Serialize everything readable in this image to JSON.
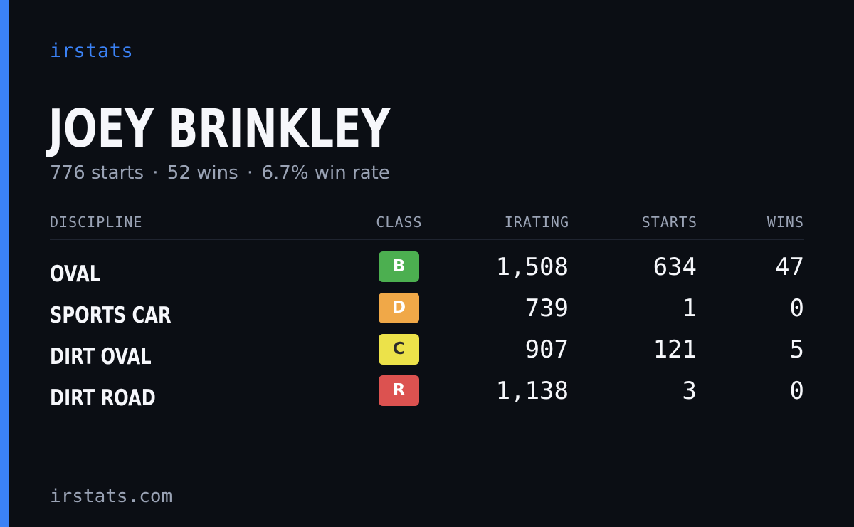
{
  "brand": "irstats",
  "driver": {
    "name": "JOEY BRINKLEY",
    "summary": {
      "starts": "776 starts",
      "wins": "52 wins",
      "win_rate": "6.7% win rate",
      "separator": "·"
    }
  },
  "table": {
    "headers": {
      "discipline": "DISCIPLINE",
      "class": "CLASS",
      "irating": "IRATING",
      "starts": "STARTS",
      "wins": "WINS"
    },
    "rows": [
      {
        "discipline": "OVAL",
        "class": "B",
        "class_color": "#4caf50",
        "class_text_color": "#ffffff",
        "irating": "1,508",
        "starts": "634",
        "wins": "47"
      },
      {
        "discipline": "SPORTS CAR",
        "class": "D",
        "class_color": "#f0a848",
        "class_text_color": "#ffffff",
        "irating": "739",
        "starts": "1",
        "wins": "0"
      },
      {
        "discipline": "DIRT OVAL",
        "class": "C",
        "class_color": "#ece24a",
        "class_text_color": "#2b2b2b",
        "irating": "907",
        "starts": "121",
        "wins": "5"
      },
      {
        "discipline": "DIRT ROAD",
        "class": "R",
        "class_color": "#dc5250",
        "class_text_color": "#ffffff",
        "irating": "1,138",
        "starts": "3",
        "wins": "0"
      }
    ]
  },
  "footer": "irstats.com",
  "colors": {
    "accent": "#3b82f6",
    "background": "#0b0e14",
    "muted_text": "#9aa3b5",
    "primary_text": "#f6f7fb"
  }
}
